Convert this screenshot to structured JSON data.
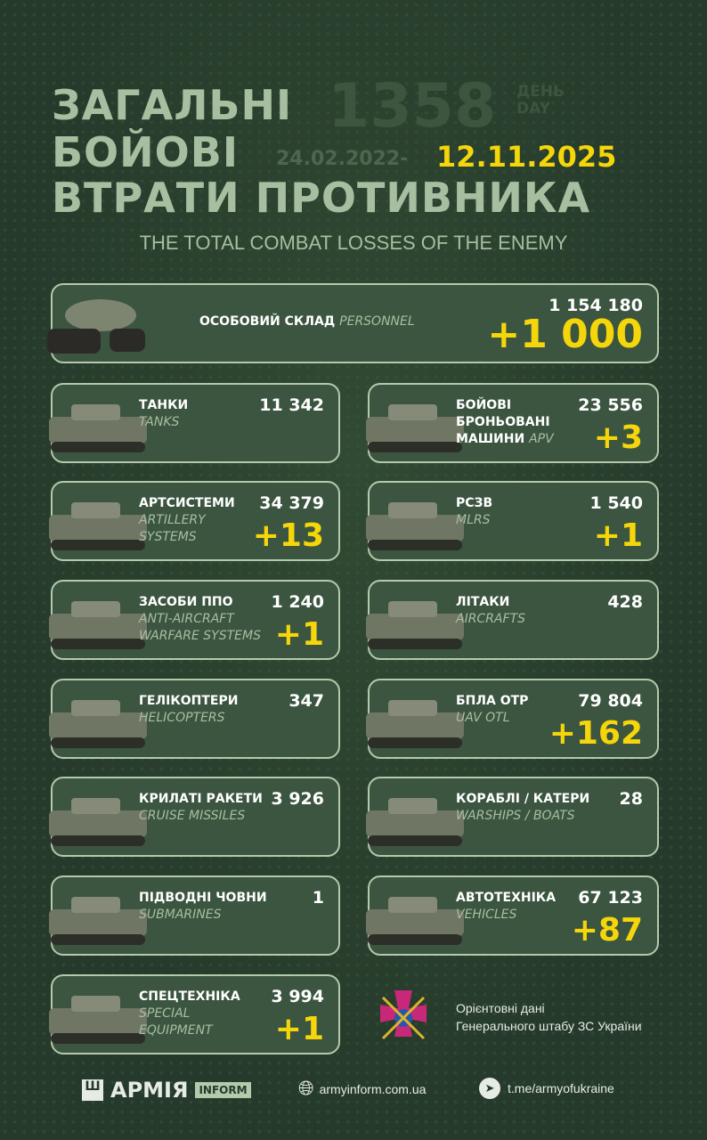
{
  "header": {
    "title_lines": [
      "ЗАГАЛЬНІ",
      "БОЙОВІ",
      "ВТРАТИ ПРОТИВНИКА"
    ],
    "day_number": "1358",
    "day_label_ua": "ДЕНЬ",
    "day_label_en": "DAY",
    "date_start": "24.02.2022-",
    "date_end": "12.11.2025",
    "subtitle": "THE TOTAL COMBAT LOSSES OF THE ENEMY"
  },
  "personnel": {
    "ua": "ОСОБОВИЙ СКЛАД",
    "en": "PERSONNEL",
    "total": "1 154 180",
    "increase": "+1 000"
  },
  "items": [
    {
      "ua": "ТАНКИ",
      "en": "TANKS",
      "total": "11 342",
      "increase": ""
    },
    {
      "ua": "БОЙОВІ\nБРОНЬОВАНІ\nМАШИНИ",
      "en": "APV",
      "total": "23 556",
      "increase": "+3"
    },
    {
      "ua": "АРТСИСТЕМИ",
      "en": "ARTILLERY\nSYSTEMS",
      "total": "34 379",
      "increase": "+13"
    },
    {
      "ua": "РСЗВ",
      "en": "MLRS",
      "total": "1 540",
      "increase": "+1"
    },
    {
      "ua": "ЗАСОБИ ППО",
      "en": "ANTI-AIRCRAFT\nWARFARE SYSTEMS",
      "total": "1 240",
      "increase": "+1"
    },
    {
      "ua": "ЛІТАКИ",
      "en": "AIRCRAFTS",
      "total": "428",
      "increase": ""
    },
    {
      "ua": "ГЕЛІКОПТЕРИ",
      "en": "HELICOPTERS",
      "total": "347",
      "increase": ""
    },
    {
      "ua": "БПЛА ОТР",
      "en": "UAV OTL",
      "total": "79 804",
      "increase": "+162"
    },
    {
      "ua": "КРИЛАТІ РАКЕТИ",
      "en": "CRUISE MISSILES",
      "total": "3 926",
      "increase": ""
    },
    {
      "ua": "КОРАБЛІ / КАТЕРИ",
      "en": "WARSHIPS / BOATS",
      "total": "28",
      "increase": ""
    },
    {
      "ua": "ПІДВОДНІ ЧОВНИ",
      "en": "SUBMARINES",
      "total": "1",
      "increase": ""
    },
    {
      "ua": "АВТОТЕХНІКА",
      "en": "VEHICLES",
      "total": "67 123",
      "increase": "+87"
    },
    {
      "ua": "СПЕЦТЕХНІКА",
      "en": "SPECIAL\nEQUIPMENT",
      "total": "3 994",
      "increase": "+1"
    }
  ],
  "source": {
    "line1": "Орієнтовні дані",
    "line2": "Генерального штабу ЗС України"
  },
  "footer": {
    "logo_text": "АРМІЯ",
    "logo_badge": "INFORM",
    "website": "armyinform.com.ua",
    "telegram": "t.me/armyofukraine"
  },
  "colors": {
    "background": "#263a2b",
    "card": "#3b5540",
    "accent": "#f5d60a",
    "muted": "#a8bea0"
  }
}
